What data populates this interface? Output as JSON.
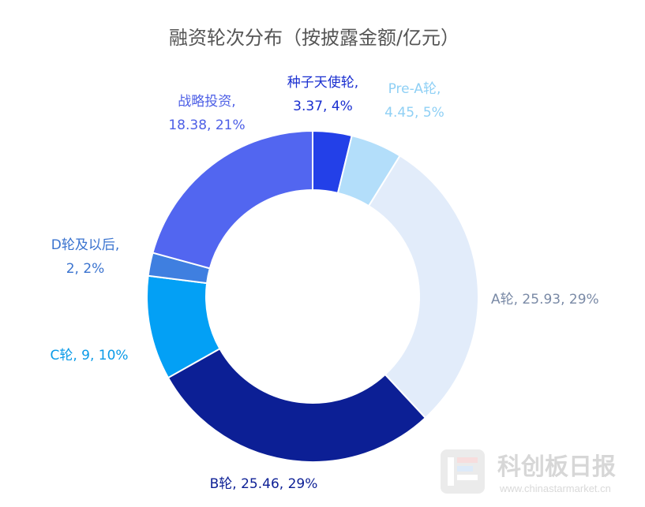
{
  "chart_data": {
    "type": "pie",
    "variant": "donut",
    "title": "融资轮次分布（按披露金额/亿元）",
    "series": [
      {
        "name": "种子天使轮",
        "value": 3.37,
        "percent_label": "4%",
        "color": "#2340e8"
      },
      {
        "name": "Pre-A轮",
        "value": 4.45,
        "percent_label": "5%",
        "color": "#b3defa"
      },
      {
        "name": "A轮",
        "value": 25.93,
        "percent_label": "29%",
        "color": "#e2ecfa"
      },
      {
        "name": "B轮",
        "value": 25.46,
        "percent_label": "29%",
        "color": "#0c1f95"
      },
      {
        "name": "C轮",
        "value": 9,
        "percent_label": "10%",
        "color": "#03a0f5"
      },
      {
        "name": "D轮及以后",
        "value": 2,
        "percent_label": "2%",
        "color": "#3f7fe0"
      },
      {
        "name": "战略投资",
        "value": 18.38,
        "percent_label": "21%",
        "color": "#5266f0"
      }
    ],
    "labels": [
      {
        "line1": "种子天使轮,",
        "line2": "3.37, 4%",
        "color": "#1a2fd0"
      },
      {
        "line1": "Pre-A轮,",
        "line2": "4.45, 5%",
        "color": "#8fd0f5"
      },
      {
        "line1": "A轮, 25.93, 29%",
        "line2": "",
        "color": "#7a8aa6"
      },
      {
        "line1": "B轮, 25.46, 29%",
        "line2": "",
        "color": "#0c1f95"
      },
      {
        "line1": "C轮, 9, 10%",
        "line2": "",
        "color": "#0a9be8"
      },
      {
        "line1": "D轮及以后,",
        "line2": "2, 2%",
        "color": "#3a73cf"
      },
      {
        "line1": "战略投资,",
        "line2": "18.38, 21%",
        "color": "#4d5fe6"
      }
    ]
  },
  "watermark": {
    "text": "科创板日报",
    "url": "www.chinastarmarket.cn"
  }
}
